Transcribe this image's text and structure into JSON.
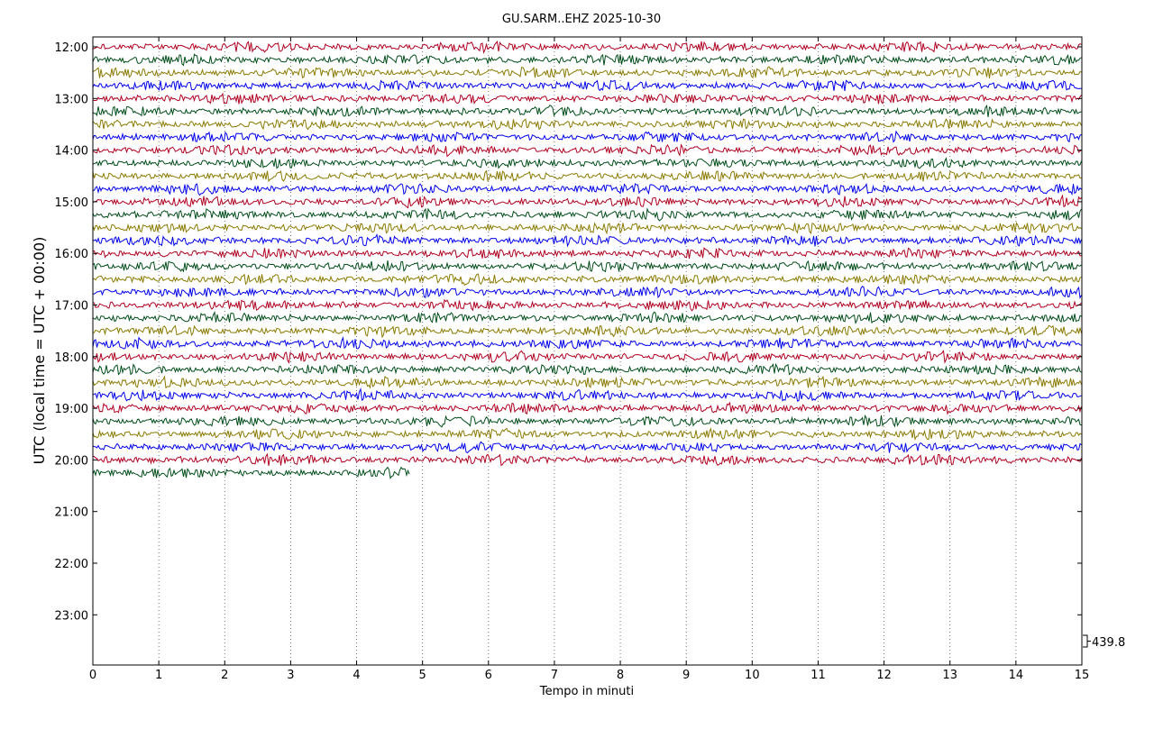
{
  "chart_data": {
    "type": "line",
    "title": "GU.SARM..EHZ 2025-10-30",
    "xlabel": "Tempo in minuti",
    "ylabel": "UTC (local time = UTC + 00:00)",
    "xlim": [
      0,
      15
    ],
    "x_ticks": [
      "0",
      "1",
      "2",
      "3",
      "4",
      "5",
      "6",
      "7",
      "8",
      "9",
      "10",
      "11",
      "12",
      "13",
      "14",
      "15"
    ],
    "y_ticks": [
      "12:00",
      "13:00",
      "14:00",
      "15:00",
      "16:00",
      "17:00",
      "18:00",
      "19:00",
      "20:00",
      "21:00",
      "22:00",
      "23:00"
    ],
    "grid": {
      "vertical_dotted": true
    },
    "trace_start": "12:00",
    "trace_interval_minutes": 15,
    "trace_colors": [
      "#b00020",
      "#004d1a",
      "#8a7a00",
      "#0000ee"
    ],
    "traces": [
      {
        "start": "12:00",
        "length_minutes": 15
      },
      {
        "start": "12:15",
        "length_minutes": 15
      },
      {
        "start": "12:30",
        "length_minutes": 15
      },
      {
        "start": "12:45",
        "length_minutes": 15
      },
      {
        "start": "13:00",
        "length_minutes": 15
      },
      {
        "start": "13:15",
        "length_minutes": 15
      },
      {
        "start": "13:30",
        "length_minutes": 15
      },
      {
        "start": "13:45",
        "length_minutes": 15
      },
      {
        "start": "14:00",
        "length_minutes": 15
      },
      {
        "start": "14:15",
        "length_minutes": 15
      },
      {
        "start": "14:30",
        "length_minutes": 15
      },
      {
        "start": "14:45",
        "length_minutes": 15
      },
      {
        "start": "15:00",
        "length_minutes": 15
      },
      {
        "start": "15:15",
        "length_minutes": 15
      },
      {
        "start": "15:30",
        "length_minutes": 15
      },
      {
        "start": "15:45",
        "length_minutes": 15
      },
      {
        "start": "16:00",
        "length_minutes": 15
      },
      {
        "start": "16:15",
        "length_minutes": 15
      },
      {
        "start": "16:30",
        "length_minutes": 15
      },
      {
        "start": "16:45",
        "length_minutes": 15
      },
      {
        "start": "17:00",
        "length_minutes": 15
      },
      {
        "start": "17:15",
        "length_minutes": 15
      },
      {
        "start": "17:30",
        "length_minutes": 15
      },
      {
        "start": "17:45",
        "length_minutes": 15
      },
      {
        "start": "18:00",
        "length_minutes": 15
      },
      {
        "start": "18:15",
        "length_minutes": 15
      },
      {
        "start": "18:30",
        "length_minutes": 15
      },
      {
        "start": "18:45",
        "length_minutes": 15
      },
      {
        "start": "19:00",
        "length_minutes": 15
      },
      {
        "start": "19:15",
        "length_minutes": 15
      },
      {
        "start": "19:30",
        "length_minutes": 15
      },
      {
        "start": "19:45",
        "length_minutes": 15
      },
      {
        "start": "20:00",
        "length_minutes": 15
      },
      {
        "start": "20:15",
        "length_minutes": 4.8
      }
    ],
    "scale_value": "439.8"
  }
}
